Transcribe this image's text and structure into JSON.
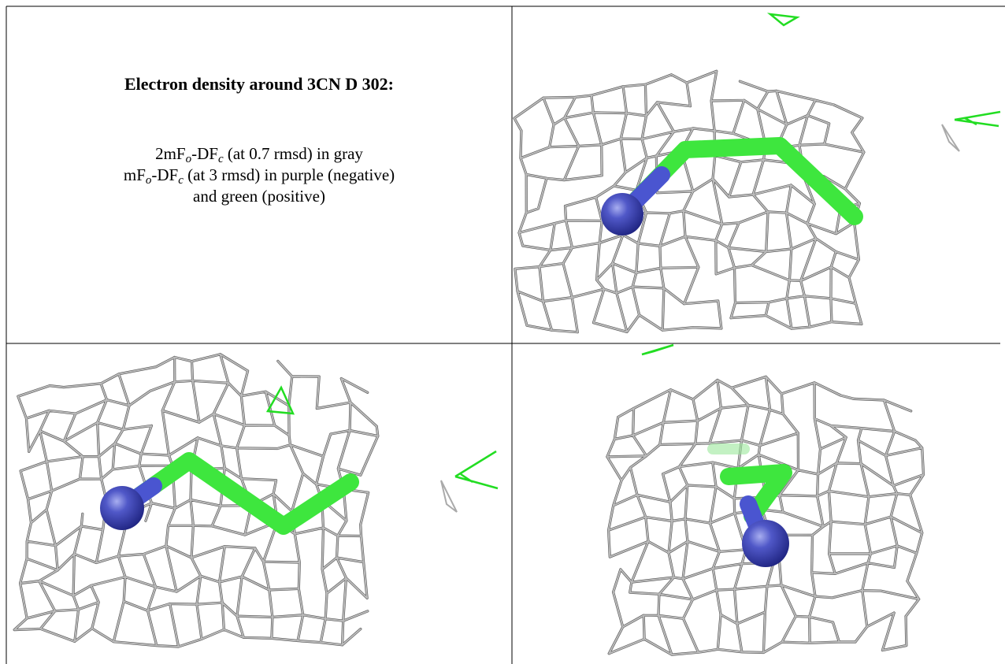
{
  "caption": {
    "title": "Electron density around 3CN D 302:",
    "lines": [
      [
        "2mF",
        "o",
        "-DF",
        "c",
        " (at 0.7 rmsd) in gray"
      ],
      [
        "mF",
        "o",
        "-DF",
        "c",
        " (at 3 rmsd) in purple (negative)"
      ],
      [
        "and green (positive)"
      ]
    ]
  }
}
